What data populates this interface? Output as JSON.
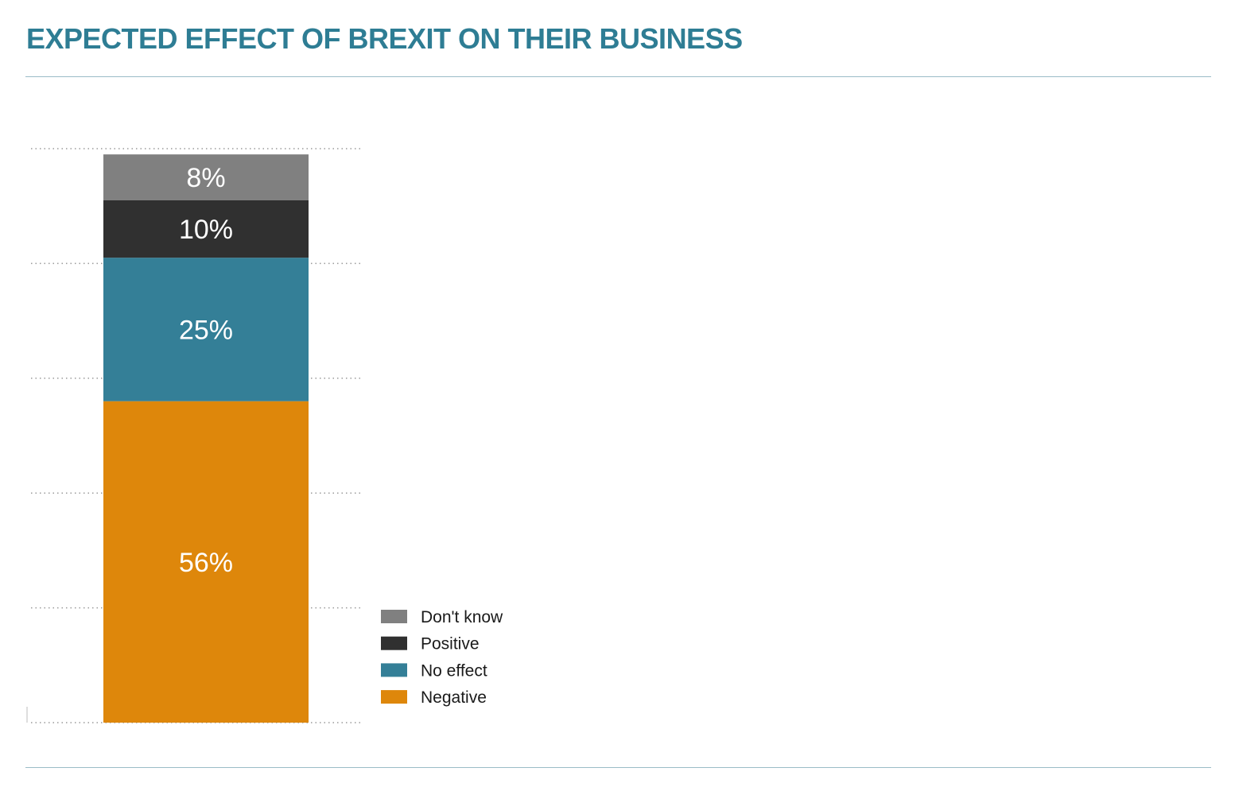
{
  "title": "EXPECTED EFFECT OF BREXIT ON THEIR BUSINESS",
  "chart_data": {
    "type": "bar",
    "stacked": true,
    "categories": [
      ""
    ],
    "series": [
      {
        "name": "Negative",
        "values": [
          56
        ],
        "label": "56%",
        "color": "#de870b"
      },
      {
        "name": "No effect",
        "values": [
          25
        ],
        "label": "25%",
        "color": "#347f97"
      },
      {
        "name": "Positive",
        "values": [
          10
        ],
        "label": "10%",
        "color": "#303030"
      },
      {
        "name": "Don't know",
        "values": [
          8
        ],
        "label": "8%",
        "color": "#808080"
      }
    ],
    "legend_order": [
      "Don't know",
      "Positive",
      "No effect",
      "Negative"
    ],
    "ylim": [
      0,
      100
    ],
    "grid": true,
    "grid_style": "dotted",
    "legend_position": "bottom-right",
    "title": "EXPECTED EFFECT OF BREXIT ON THEIR BUSINESS",
    "xlabel": "",
    "ylabel": ""
  }
}
